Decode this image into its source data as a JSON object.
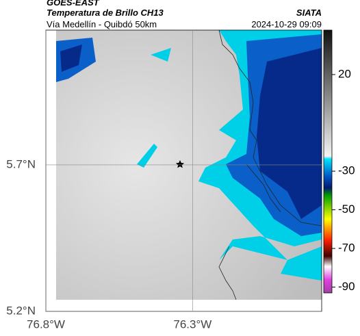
{
  "header": {
    "source": "GOES-EAST",
    "product": "Temperatura de Brillo CH13",
    "location": "Vía Medellín - Quibdó 50km",
    "agency": "SIATA",
    "datetime": "2024-10-29 09:09"
  },
  "map": {
    "xlim": [
      -76.8,
      -75.86
    ],
    "ylim": [
      5.2,
      6.16
    ],
    "lat_ticks": [
      {
        "value": 5.7,
        "label": "5.7°N"
      },
      {
        "value": 5.2,
        "label": "5.2°N"
      }
    ],
    "lon_ticks": [
      {
        "value": -76.8,
        "label": "76.8°W"
      },
      {
        "value": -76.3,
        "label": "76.3°W"
      }
    ],
    "colorbar": {
      "lim": [
        43,
        -93
      ],
      "ticks": [
        20,
        -30,
        -50,
        -70,
        -90
      ]
    }
  }
}
